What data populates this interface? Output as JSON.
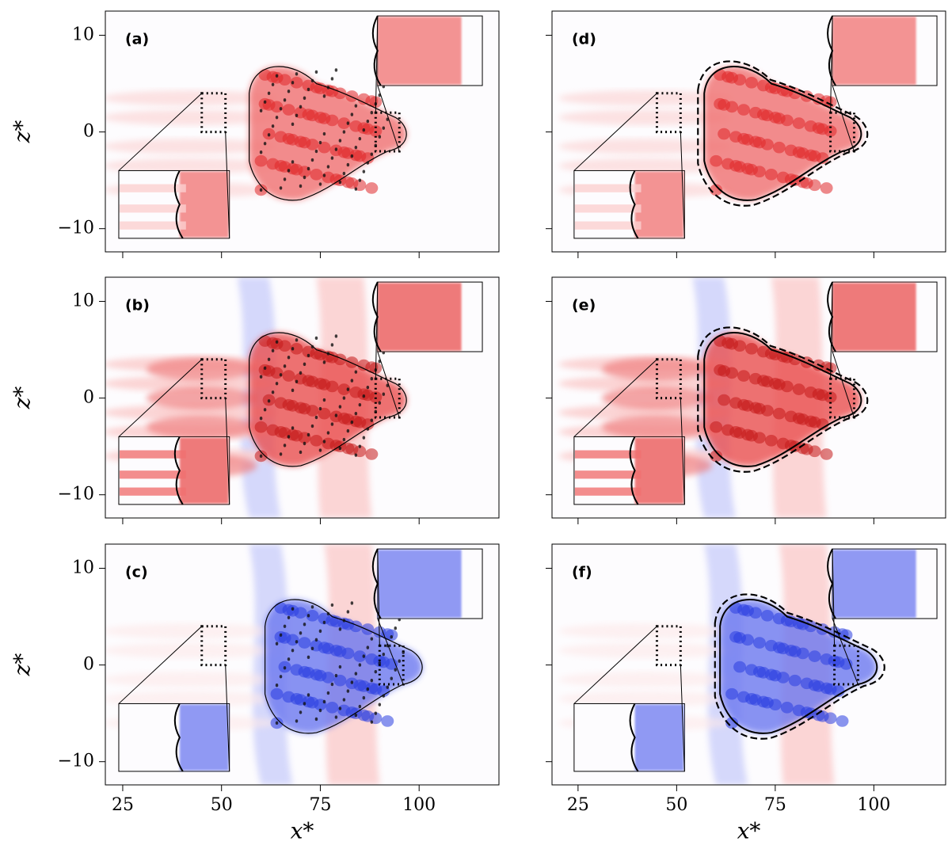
{
  "chart_data": [
    {
      "type": "contour",
      "label": "(a)",
      "xlim": [
        20.6,
        120.2
      ],
      "ylim": [
        -12.4,
        12.5
      ],
      "xticks": [
        25,
        50,
        75,
        100
      ],
      "yticks": [
        {
          "value": -10,
          "label": "−10"
        },
        0,
        10
      ],
      "xticklabels": false,
      "yticklabels": true,
      "ylabel": "z*",
      "colormap": "red"
    },
    {
      "type": "contour",
      "label": "(b)",
      "xlim": [
        20.6,
        120.2
      ],
      "ylim": [
        -12.4,
        12.5
      ],
      "xticks": [
        25,
        50,
        75,
        100
      ],
      "yticks": [
        {
          "value": -10,
          "label": "−10"
        },
        0,
        10
      ],
      "xticklabels": false,
      "yticklabels": true,
      "ylabel": "z*",
      "colormap": "mixed"
    },
    {
      "type": "contour",
      "label": "(c)",
      "xlim": [
        20.6,
        120.2
      ],
      "ylim": [
        -12.4,
        12.5
      ],
      "xticks": [
        25,
        50,
        75,
        100
      ],
      "yticks": [
        {
          "value": -10,
          "label": "−10"
        },
        0,
        10
      ],
      "xticklabels": true,
      "yticklabels": true,
      "ylabel": "z*",
      "xlabel": "x*",
      "colormap": "blue"
    },
    {
      "type": "contour",
      "label": "(d)",
      "xlim": [
        18.4,
        118.2
      ],
      "ylim": [
        -12.4,
        12.5
      ],
      "xticks": [
        25,
        50,
        75,
        100
      ],
      "yticks": [
        -10,
        0,
        10
      ],
      "xticklabels": false,
      "yticklabels": false,
      "colormap": "red"
    },
    {
      "type": "contour",
      "label": "(e)",
      "xlim": [
        18.4,
        118.2
      ],
      "ylim": [
        -12.4,
        12.5
      ],
      "xticks": [
        25,
        50,
        75,
        100
      ],
      "yticks": [
        -10,
        0,
        10
      ],
      "xticklabels": false,
      "yticklabels": false,
      "colormap": "mixed"
    },
    {
      "type": "contour",
      "label": "(f)",
      "xlim": [
        18.4,
        118.2
      ],
      "ylim": [
        -12.4,
        12.5
      ],
      "xticks": [
        25,
        50,
        75,
        100
      ],
      "yticks": [
        -10,
        0,
        10
      ],
      "xticklabels": true,
      "yticklabels": false,
      "xlabel": "x*",
      "colormap": "blue"
    }
  ]
}
